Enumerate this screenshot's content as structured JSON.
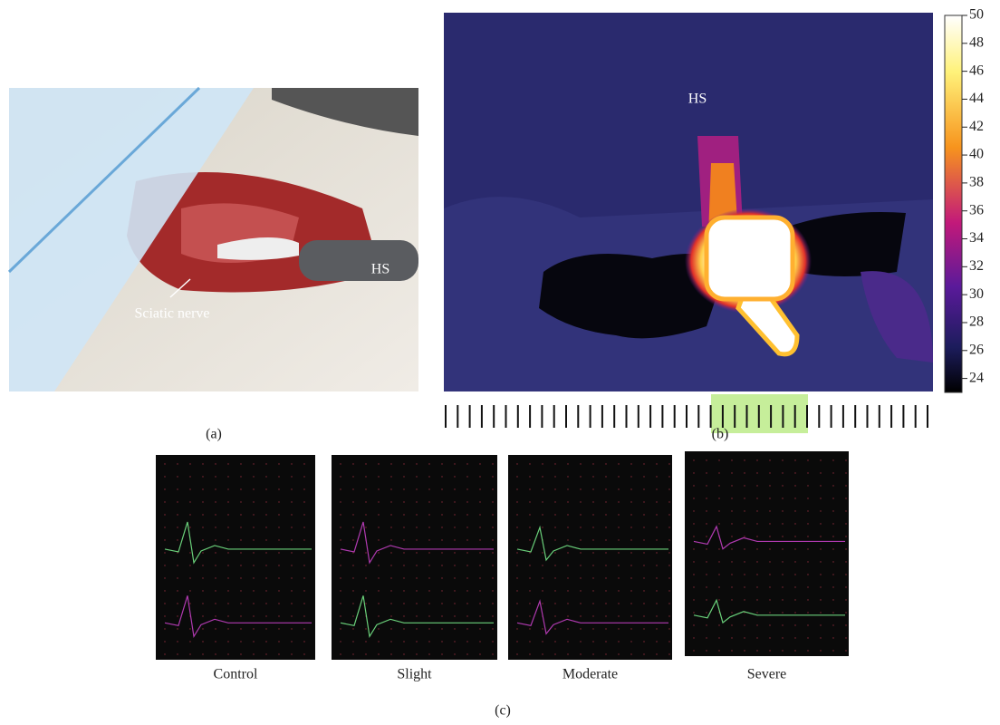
{
  "panel_a": {
    "label": "(a)",
    "annotations": [
      "HS",
      "Sciatic nerve"
    ]
  },
  "panel_b": {
    "label": "(b)",
    "annotation": "HS",
    "colorbar": {
      "lim": [
        23,
        50
      ],
      "ticks": [
        24,
        26,
        28,
        30,
        32,
        34,
        36,
        38,
        40,
        42,
        44,
        46,
        48,
        50
      ]
    }
  },
  "panel_c": {
    "label": "(c)",
    "captions": [
      "Control",
      "Slight",
      "Moderate",
      "Severe"
    ]
  }
}
